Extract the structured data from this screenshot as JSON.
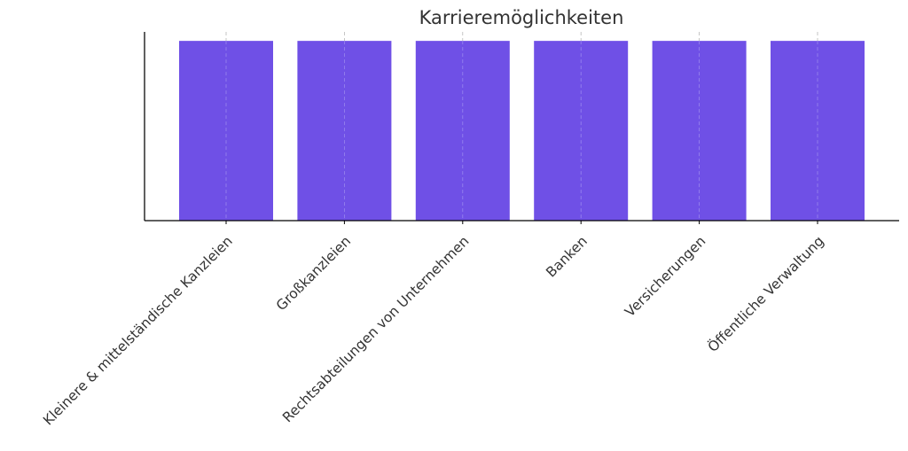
{
  "chart_data": {
    "type": "bar",
    "title": "Karrieremöglichkeiten",
    "xlabel": "",
    "ylabel": "",
    "categories": [
      "Kleinere & mittelständische Kanzleien",
      "Großkanzleien",
      "Rechtsabteilungen von Unternehmen",
      "Banken",
      "Versicherungen",
      "Öffentliche Verwaltung"
    ],
    "values": [
      1,
      1,
      1,
      1,
      1,
      1
    ],
    "ylim": [
      0,
      1.05
    ],
    "grid": "vertical dashed",
    "legend": "none",
    "bar_color": "#6f50e6"
  }
}
